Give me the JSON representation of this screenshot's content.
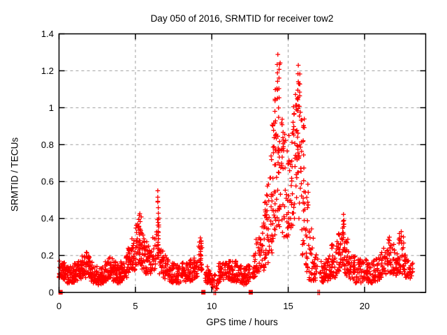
{
  "chart_data": {
    "type": "scatter",
    "title": "Day 050 of 2016, SRMTID for receiver tow2",
    "xlabel": "GPS time / hours",
    "ylabel": "SRMTID / TECUs",
    "xlim": [
      0,
      24
    ],
    "ylim": [
      0,
      1.4
    ],
    "xticks": [
      0,
      5,
      10,
      15,
      20
    ],
    "xtick_labels": [
      "0",
      "5",
      "10",
      "15",
      "20"
    ],
    "yticks": [
      0,
      0.2,
      0.4,
      0.6,
      0.8,
      1,
      1.2,
      1.4
    ],
    "ytick_labels": [
      "0",
      "0.2",
      "0.4",
      "0.6",
      "0.8",
      "1",
      "1.2",
      "1.4"
    ],
    "grid": "dashed-major",
    "grid_color": "#a0a0a0",
    "marker": "plus",
    "marker_color": "#ff0000",
    "axis_color": "#000000",
    "legend": "none",
    "seed": 20160550,
    "envelope_bins_note": "each bin = [x_start_hours, x_end_hours, y_min_TECU, y_max_TECU, point_count]",
    "envelope": [
      [
        0.0,
        0.25,
        0.08,
        0.18,
        25
      ],
      [
        0.25,
        0.5,
        0.07,
        0.17,
        25
      ],
      [
        0.5,
        0.75,
        0.05,
        0.15,
        25
      ],
      [
        0.75,
        1.0,
        0.05,
        0.14,
        25
      ],
      [
        1.0,
        1.25,
        0.06,
        0.16,
        25
      ],
      [
        1.25,
        1.5,
        0.07,
        0.18,
        25
      ],
      [
        1.5,
        1.75,
        0.08,
        0.2,
        25
      ],
      [
        1.75,
        2.0,
        0.08,
        0.22,
        25
      ],
      [
        2.0,
        2.25,
        0.06,
        0.17,
        25
      ],
      [
        2.25,
        2.5,
        0.05,
        0.15,
        25
      ],
      [
        2.5,
        2.75,
        0.04,
        0.13,
        25
      ],
      [
        2.75,
        3.0,
        0.05,
        0.14,
        25
      ],
      [
        3.0,
        3.25,
        0.06,
        0.17,
        25
      ],
      [
        3.25,
        3.5,
        0.07,
        0.19,
        25
      ],
      [
        3.5,
        3.75,
        0.06,
        0.17,
        25
      ],
      [
        3.75,
        4.0,
        0.05,
        0.15,
        25
      ],
      [
        4.0,
        4.25,
        0.06,
        0.17,
        25
      ],
      [
        4.25,
        4.5,
        0.08,
        0.2,
        25
      ],
      [
        4.5,
        4.75,
        0.1,
        0.24,
        25
      ],
      [
        4.75,
        5.0,
        0.12,
        0.3,
        25
      ],
      [
        5.0,
        5.2,
        0.15,
        0.38,
        20
      ],
      [
        5.2,
        5.4,
        0.15,
        0.43,
        20
      ],
      [
        5.4,
        5.6,
        0.12,
        0.32,
        20
      ],
      [
        5.6,
        5.8,
        0.1,
        0.28,
        20
      ],
      [
        5.8,
        6.1,
        0.1,
        0.26,
        25
      ],
      [
        6.1,
        6.35,
        0.12,
        0.3,
        20
      ],
      [
        6.38,
        6.55,
        0.18,
        0.5,
        14
      ],
      [
        6.55,
        6.8,
        0.1,
        0.24,
        20
      ],
      [
        6.8,
        7.2,
        0.07,
        0.2,
        32
      ],
      [
        7.2,
        7.6,
        0.05,
        0.16,
        32
      ],
      [
        7.6,
        8.0,
        0.05,
        0.15,
        32
      ],
      [
        8.0,
        8.4,
        0.05,
        0.16,
        32
      ],
      [
        8.4,
        8.8,
        0.06,
        0.18,
        32
      ],
      [
        8.8,
        9.1,
        0.07,
        0.2,
        25
      ],
      [
        9.1,
        9.4,
        0.1,
        0.28,
        22
      ],
      [
        9.55,
        9.8,
        0.05,
        0.14,
        18
      ],
      [
        9.8,
        10.05,
        0.04,
        0.12,
        18
      ],
      [
        10.05,
        10.4,
        0.02,
        0.1,
        15
      ],
      [
        10.4,
        10.8,
        0.05,
        0.16,
        30
      ],
      [
        10.8,
        11.2,
        0.07,
        0.18,
        32
      ],
      [
        11.2,
        11.6,
        0.06,
        0.17,
        32
      ],
      [
        11.6,
        12.0,
        0.05,
        0.15,
        32
      ],
      [
        12.0,
        12.3,
        0.04,
        0.14,
        24
      ],
      [
        12.3,
        12.55,
        0.05,
        0.15,
        18
      ],
      [
        12.65,
        12.9,
        0.08,
        0.22,
        20
      ],
      [
        12.9,
        13.2,
        0.1,
        0.3,
        24
      ],
      [
        13.2,
        13.45,
        0.12,
        0.38,
        20
      ],
      [
        13.45,
        13.7,
        0.15,
        0.55,
        22
      ],
      [
        13.7,
        13.95,
        0.2,
        0.8,
        24
      ],
      [
        13.95,
        14.2,
        0.28,
        1.05,
        26
      ],
      [
        14.2,
        14.5,
        0.35,
        1.25,
        30
      ],
      [
        14.5,
        14.75,
        0.3,
        0.95,
        24
      ],
      [
        14.75,
        15.05,
        0.3,
        0.9,
        24
      ],
      [
        15.05,
        15.35,
        0.35,
        1.0,
        26
      ],
      [
        15.35,
        15.6,
        0.4,
        1.1,
        24
      ],
      [
        15.6,
        15.85,
        0.4,
        1.2,
        26
      ],
      [
        15.85,
        16.1,
        0.2,
        0.95,
        24
      ],
      [
        16.1,
        16.35,
        0.1,
        0.6,
        22
      ],
      [
        16.35,
        16.65,
        0.06,
        0.35,
        22
      ],
      [
        16.65,
        16.95,
        0.05,
        0.22,
        20
      ],
      [
        17.05,
        17.4,
        0.05,
        0.18,
        24
      ],
      [
        17.4,
        17.8,
        0.06,
        0.2,
        30
      ],
      [
        17.8,
        18.2,
        0.08,
        0.26,
        30
      ],
      [
        18.2,
        18.5,
        0.1,
        0.34,
        26
      ],
      [
        18.5,
        18.7,
        0.12,
        0.4,
        20
      ],
      [
        18.7,
        19.0,
        0.08,
        0.3,
        24
      ],
      [
        19.0,
        19.4,
        0.07,
        0.22,
        30
      ],
      [
        19.4,
        19.8,
        0.05,
        0.18,
        30
      ],
      [
        19.8,
        20.2,
        0.06,
        0.18,
        30
      ],
      [
        20.2,
        20.6,
        0.05,
        0.17,
        30
      ],
      [
        20.6,
        21.0,
        0.06,
        0.19,
        30
      ],
      [
        21.0,
        21.4,
        0.08,
        0.24,
        30
      ],
      [
        21.4,
        21.8,
        0.1,
        0.3,
        30
      ],
      [
        21.8,
        22.2,
        0.08,
        0.27,
        30
      ],
      [
        22.2,
        22.6,
        0.1,
        0.33,
        30
      ],
      [
        22.6,
        22.9,
        0.08,
        0.22,
        24
      ],
      [
        22.9,
        23.15,
        0.07,
        0.16,
        16
      ]
    ],
    "spike_strings_note": "vertical strings of points = [x_hours, y_from, y_to, count]",
    "spikes": [
      [
        5.25,
        0.28,
        0.42,
        6
      ],
      [
        5.33,
        0.25,
        0.38,
        5
      ],
      [
        6.47,
        0.24,
        0.55,
        11
      ],
      [
        6.52,
        0.22,
        0.4,
        6
      ],
      [
        9.28,
        0.2,
        0.3,
        5
      ],
      [
        13.62,
        0.35,
        0.57,
        6
      ],
      [
        14.05,
        0.75,
        0.92,
        5
      ],
      [
        14.15,
        0.85,
        1.1,
        5
      ],
      [
        14.3,
        1.05,
        1.285,
        6
      ],
      [
        14.38,
        0.95,
        1.21,
        6
      ],
      [
        15.35,
        0.85,
        1.0,
        5
      ],
      [
        15.65,
        1.0,
        1.23,
        6
      ],
      [
        15.75,
        0.95,
        1.18,
        5
      ],
      [
        16.0,
        0.6,
        0.9,
        5
      ],
      [
        18.62,
        0.3,
        0.42,
        5
      ],
      [
        22.42,
        0.26,
        0.33,
        4
      ]
    ],
    "zero_square_markers_x": [
      0.1,
      9.45,
      12.55
    ],
    "zero_bar_markers_x": [
      10.15,
      10.25,
      16.95,
      17.05
    ]
  }
}
